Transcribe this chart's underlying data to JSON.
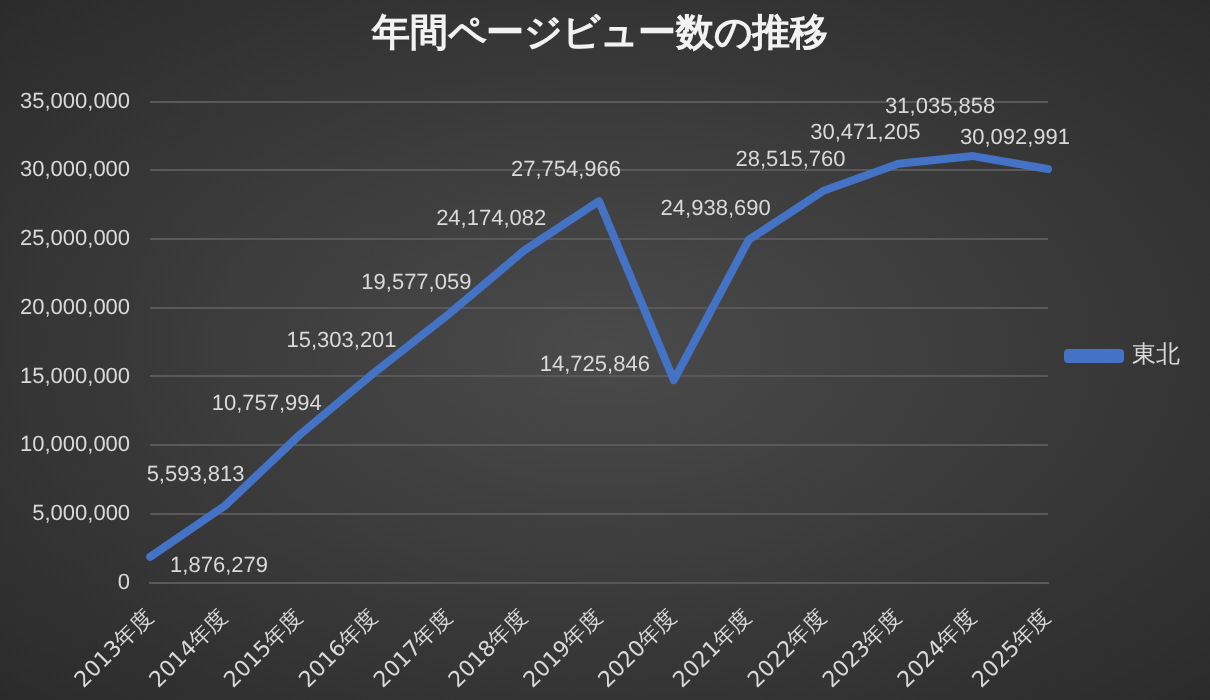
{
  "chart_data": {
    "type": "line",
    "title": "年間ページビュー数の推移",
    "categories": [
      "2013年度",
      "2014年度",
      "2015年度",
      "2016年度",
      "2017年度",
      "2018年度",
      "2019年度",
      "2020年度",
      "2021年度",
      "2022年度",
      "2023年度",
      "2024年度",
      "2025年度"
    ],
    "series": [
      {
        "name": "東北",
        "color": "#4472c4",
        "values": [
          1876279,
          5593813,
          10757994,
          15303201,
          19577059,
          24174082,
          27754966,
          14725846,
          24938690,
          28515760,
          30471205,
          31035858,
          30092991
        ],
        "value_labels": [
          "1,876,279",
          "5,593,813",
          "10,757,994",
          "15,303,201",
          "19,577,059",
          "24,174,082",
          "27,754,966",
          "14,725,846",
          "24,938,690",
          "28,515,760",
          "30,471,205",
          "31,035,858",
          "30,092,991"
        ]
      }
    ],
    "ylim": [
      0,
      35000000
    ],
    "yticks": [
      {
        "value": 0,
        "label": "0"
      },
      {
        "value": 5000000,
        "label": "5,000,000"
      },
      {
        "value": 10000000,
        "label": "10,000,000"
      },
      {
        "value": 15000000,
        "label": "15,000,000"
      },
      {
        "value": 20000000,
        "label": "20,000,000"
      },
      {
        "value": 25000000,
        "label": "25,000,000"
      },
      {
        "value": 30000000,
        "label": "30,000,000"
      },
      {
        "value": 35000000,
        "label": "35,000,000"
      }
    ],
    "grid": "y",
    "legend": "right",
    "marker": "none",
    "line_style": "solid"
  }
}
